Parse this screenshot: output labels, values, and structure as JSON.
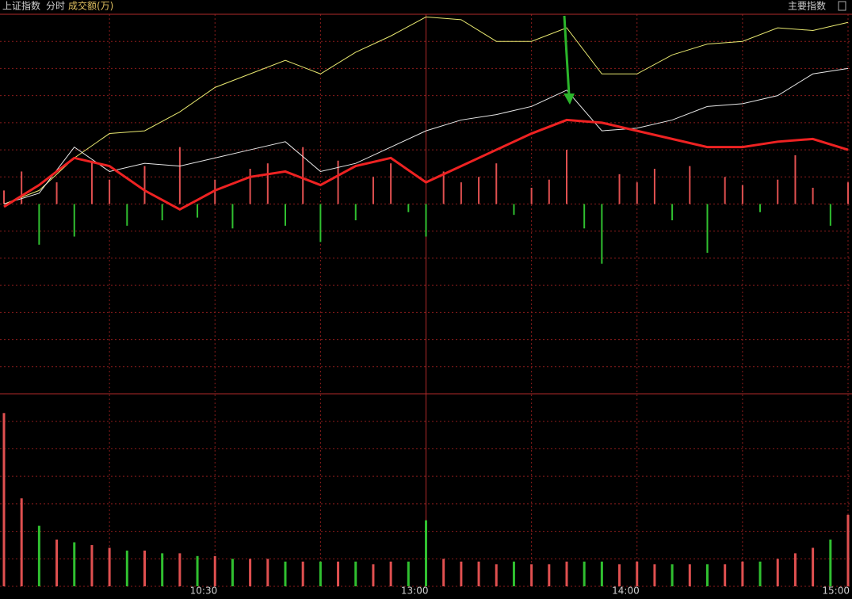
{
  "chart_data": {
    "type": "line",
    "title": "上证指数",
    "mode": "分时",
    "indicator": "成交额(万)",
    "menu": "主要指数",
    "xlim": [
      0,
      240
    ],
    "xticks": [
      {
        "value": 60,
        "label": "10:30"
      },
      {
        "value": 120,
        "label": "13:00"
      },
      {
        "value": 180,
        "label": "14:00"
      },
      {
        "value": 240,
        "label": "15:00"
      }
    ],
    "xgrid": [
      30,
      90,
      150,
      210
    ],
    "ylim": [
      -7,
      7
    ],
    "yticks": [
      -7,
      -6,
      -5,
      -4,
      -3,
      -2,
      -1,
      0,
      1,
      2,
      3,
      4,
      5,
      6,
      7
    ],
    "y2lim": [
      0,
      7
    ],
    "y2ticks": [
      0,
      1,
      2,
      3,
      4,
      5,
      6,
      7
    ],
    "grid": true,
    "x": [
      0,
      10,
      20,
      30,
      40,
      50,
      60,
      70,
      80,
      90,
      100,
      110,
      120,
      130,
      140,
      150,
      160,
      170,
      180,
      190,
      200,
      210,
      220,
      230,
      240
    ],
    "series": [
      {
        "color": "#e8e870",
        "values": [
          0,
          0.5,
          1.7,
          2.6,
          2.7,
          3.4,
          4.3,
          4.8,
          5.3,
          4.8,
          5.6,
          6.2,
          6.9,
          6.8,
          6.0,
          6.0,
          6.5,
          4.8,
          4.8,
          5.5,
          5.9,
          6.0,
          6.5,
          6.4,
          6.7
        ]
      },
      {
        "color": "#e8e8e8",
        "values": [
          0,
          0.4,
          2.1,
          1.2,
          1.5,
          1.4,
          1.7,
          2.0,
          2.3,
          1.2,
          1.5,
          2.1,
          2.7,
          3.1,
          3.3,
          3.6,
          4.2,
          2.7,
          2.8,
          3.1,
          3.6,
          3.7,
          4.0,
          4.8,
          5.0
        ]
      },
      {
        "color": "#ee2222",
        "values": [
          -0.1,
          0.7,
          1.7,
          1.4,
          0.5,
          -0.2,
          0.5,
          1.0,
          1.2,
          0.7,
          1.4,
          1.7,
          0.8,
          1.4,
          2.0,
          2.6,
          3.1,
          3.0,
          2.7,
          2.4,
          2.1,
          2.1,
          2.3,
          2.4,
          2.0
        ]
      }
    ],
    "bars": {
      "up_color": "#e05050",
      "down_color": "#30c030",
      "x": [
        0,
        5,
        10,
        15,
        20,
        25,
        30,
        35,
        40,
        45,
        50,
        55,
        60,
        65,
        70,
        75,
        80,
        85,
        90,
        95,
        100,
        105,
        110,
        115,
        120,
        125,
        130,
        135,
        140,
        145,
        150,
        155,
        160,
        165,
        170,
        175,
        180,
        185,
        190,
        195,
        200,
        205,
        210,
        215,
        220,
        225,
        230,
        235,
        240
      ],
      "values": [
        0.5,
        1.2,
        -1.5,
        0.8,
        -1.2,
        1.6,
        0.9,
        -0.8,
        1.4,
        -0.6,
        2.1,
        -0.5,
        0.9,
        -0.9,
        1.3,
        1.5,
        -0.8,
        2.1,
        -1.4,
        1.6,
        -0.6,
        1.0,
        1.5,
        -0.3,
        -1.2,
        1.2,
        0.8,
        1.0,
        1.5,
        -0.4,
        0.6,
        0.9,
        2.0,
        -0.9,
        -2.2,
        1.1,
        0.8,
        1.3,
        -0.6,
        1.4,
        -1.8,
        1.0,
        0.7,
        -0.3,
        0.9,
        1.8,
        0.6,
        -0.8,
        0.8
      ]
    },
    "volume": {
      "values": [
        6.3,
        3.2,
        2.2,
        1.7,
        1.6,
        1.5,
        1.4,
        1.3,
        1.3,
        1.2,
        1.2,
        1.1,
        1.1,
        1.0,
        1.0,
        1.0,
        0.9,
        0.9,
        0.9,
        0.9,
        0.9,
        0.8,
        0.9,
        0.9,
        2.4,
        1.0,
        0.9,
        0.9,
        0.8,
        0.9,
        0.8,
        0.8,
        0.9,
        0.9,
        0.9,
        0.8,
        0.9,
        0.8,
        0.8,
        0.8,
        0.8,
        0.8,
        0.9,
        0.9,
        1.0,
        1.2,
        1.4,
        1.7,
        2.6
      ]
    }
  }
}
